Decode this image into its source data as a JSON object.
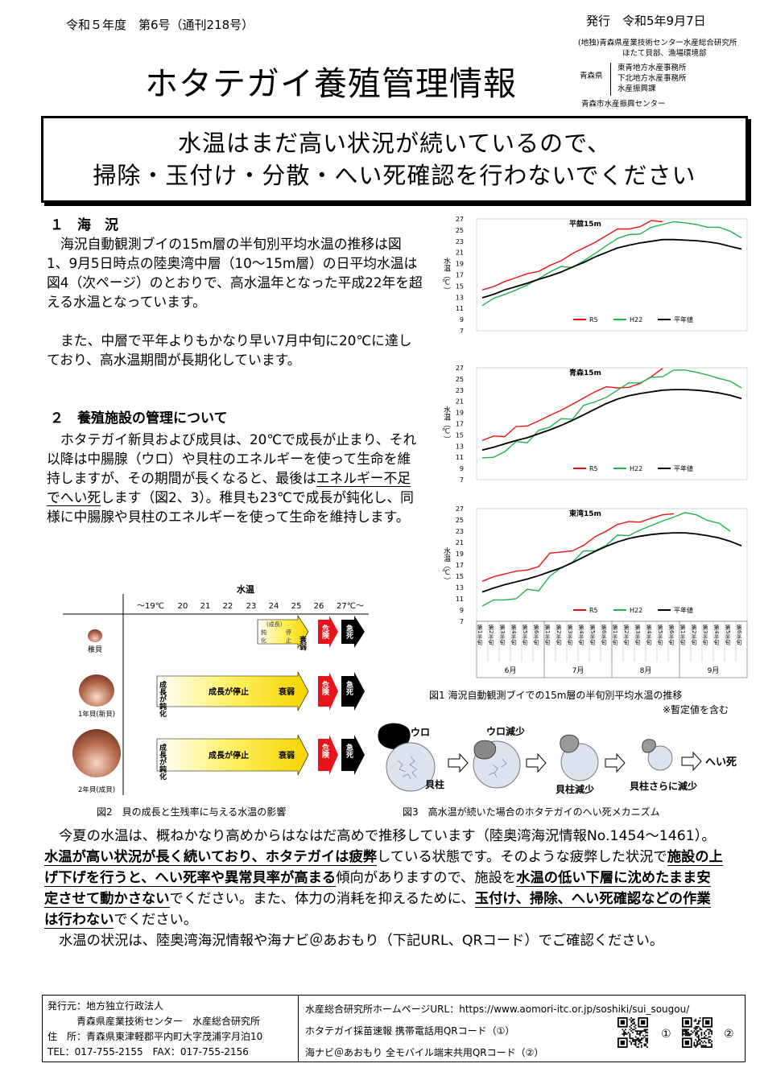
{
  "header": {
    "issue": "令和５年度　第6号（通刊218号）",
    "date": "発行　令和5年9月7日",
    "issuer_line1": "(地独)青森県産業技術センター水産総合研究所",
    "issuer_line2": "ほたて貝部、漁場環境部",
    "prefecture": "青森県",
    "offices": [
      "東青地方水産事務所",
      "下北地方水産事務所",
      "水産振興課"
    ],
    "city": "青森市水産振興センター",
    "title": "ホタテガイ養殖管理情報"
  },
  "headline": {
    "line1": "水温はまだ高い状況が続いているので、",
    "line2": "掃除・玉付け・分散・へい死確認を行わないでください"
  },
  "section1": {
    "heading": "１　海　況",
    "p1": "海況自動観測ブイの15m層の半旬別平均水温の推移は図1、9月5日時点の陸奥湾中層（10〜15m層）の日平均水温は図4（次ページ）のとおりで、高水温年となった平成22年を超える水温となっています。",
    "p2": "また、中層で平年よりもかなり早い7月中旬に20℃に達しており、高水温期間が長期化しています。"
  },
  "section2": {
    "heading": "２　養殖施設の管理について",
    "p1a": "ホタテガイ新貝および成貝は、20℃で成長が止まり、それ以降は中腸腺（ウロ）や貝柱のエネルギーを使って生命を維持しますが、その期間が長くなると、最後は",
    "p1u": "エネルギー不足でへい死",
    "p1b": "します（図2、3）。稚貝も23℃で成長が鈍化し、同様に中腸腺や貝柱のエネルギーを使って生命を維持します。"
  },
  "figure1": {
    "caption": "図1 海況自動観測ブイでの15m層の半旬別平均水温の推移",
    "note": "※暫定値を含む",
    "ylabel": "水温（℃）",
    "ticks": [
      "27",
      "25",
      "23",
      "21",
      "19",
      "17",
      "15",
      "13",
      "11",
      "9",
      "7"
    ],
    "legend": [
      "R5",
      "H22",
      "平年値"
    ],
    "x_ticks": [
      "第1半旬",
      "第2半旬",
      "第3半旬",
      "第4半旬",
      "第5半旬",
      "第6半旬",
      "第1半旬",
      "第2半旬",
      "第3半旬",
      "第4半旬",
      "第5半旬",
      "第6半旬",
      "第1半旬",
      "第2半旬",
      "第3半旬",
      "第4半旬",
      "第5半旬",
      "第6半旬",
      "第1半旬",
      "第2半旬",
      "第3半旬",
      "第4半旬",
      "第5半旬",
      "第6半旬"
    ],
    "months": [
      "6月",
      "7月",
      "8月",
      "9月"
    ],
    "colors": {
      "R5": "#ee1111",
      "H22": "#1fb34a",
      "normal": "#000000"
    }
  },
  "chart_data": [
    {
      "type": "line",
      "title": "平舘15m",
      "ylim": [
        7,
        27
      ],
      "ylabel": "水温（℃）",
      "series": [
        {
          "name": "R5",
          "values": [
            14.3,
            14.9,
            15.8,
            16.5,
            17.2,
            17.6,
            18.7,
            19.5,
            20.8,
            21.8,
            22.8,
            24.0,
            25.2,
            25.2,
            25.6,
            26.7,
            26.5
          ]
        },
        {
          "name": "H22",
          "values": [
            11.5,
            12.8,
            13.5,
            14.3,
            15.2,
            16.3,
            17.5,
            18.5,
            18.3,
            19.5,
            20.8,
            22.2,
            23.5,
            24.2,
            24.3,
            25.5,
            26.0,
            26.5,
            26.3,
            26.0,
            25.5,
            25.5,
            24.8,
            23.6
          ]
        },
        {
          "name": "平年値",
          "values": [
            12.9,
            13.5,
            14.3,
            14.9,
            15.5,
            16.2,
            16.8,
            17.5,
            18.4,
            19.2,
            20.2,
            21.0,
            21.8,
            22.3,
            22.7,
            23.0,
            23.3,
            23.3,
            23.2,
            23.1,
            22.9,
            22.6,
            22.1,
            21.6
          ]
        }
      ]
    },
    {
      "type": "line",
      "title": "青森15m",
      "ylim": [
        7,
        27
      ],
      "ylabel": "水温（℃）",
      "series": [
        {
          "name": "R5",
          "values": [
            14.0,
            14.8,
            14.7,
            16.5,
            16.6,
            17.5,
            18.5,
            19.4,
            20.5,
            21.6,
            22.7,
            23.6,
            23.4,
            23.5,
            24.2,
            25.4,
            26.9
          ]
        },
        {
          "name": "H22",
          "values": [
            10.9,
            11.0,
            12.0,
            13.8,
            13.6,
            15.8,
            16.4,
            17.9,
            17.8,
            20.3,
            20.9,
            21.7,
            23.0,
            24.3,
            24.3,
            25.3,
            25.4,
            26.6,
            26.6,
            26.2,
            25.7,
            25.1,
            24.6,
            23.4
          ]
        },
        {
          "name": "平年値",
          "values": [
            12.3,
            12.8,
            13.4,
            14.0,
            14.5,
            15.2,
            15.9,
            16.7,
            17.6,
            18.6,
            19.6,
            20.6,
            21.4,
            22.0,
            22.4,
            22.7,
            23.0,
            23.1,
            23.1,
            23.0,
            22.8,
            22.5,
            22.1,
            21.5
          ]
        }
      ]
    },
    {
      "type": "line",
      "title": "東湾15m",
      "ylim": [
        7,
        27
      ],
      "ylabel": "水温（℃）",
      "series": [
        {
          "name": "R5",
          "values": [
            14.1,
            14.9,
            15.4,
            15.9,
            16.1,
            16.7,
            19.1,
            19.3,
            19.5,
            20.5,
            22.0,
            23.0,
            24.2,
            24.7,
            24.6,
            25.3,
            25.9,
            26.1
          ]
        },
        {
          "name": "H22",
          "values": [
            9.7,
            10.8,
            10.8,
            11.0,
            12.7,
            12.4,
            15.0,
            16.5,
            17.5,
            19.5,
            19.5,
            20.5,
            22.3,
            22.2,
            23.2,
            24.0,
            24.8,
            25.5,
            26.3,
            25.9,
            24.9,
            24.4,
            23.0
          ]
        },
        {
          "name": "平年値",
          "values": [
            12.2,
            12.9,
            13.5,
            14.0,
            14.5,
            15.1,
            15.8,
            16.5,
            17.4,
            18.4,
            19.4,
            20.3,
            21.1,
            21.7,
            22.1,
            22.4,
            22.6,
            22.7,
            22.7,
            22.5,
            22.2,
            21.8,
            21.2,
            20.4
          ]
        }
      ]
    }
  ],
  "figure2": {
    "caption": "図2　貝の成長と生残率に与える水温の影響",
    "axis_title": "水温",
    "temps": [
      "〜19℃",
      "20",
      "21",
      "22",
      "23",
      "24",
      "25",
      "26",
      "27℃〜"
    ],
    "rows": [
      {
        "label": "稚貝",
        "small": [
          "(成長)",
          "鈍",
          "化",
          "停",
          "止"
        ],
        "weak": "衰弱",
        "danger": "危険",
        "death": "急死"
      },
      {
        "label": "1年貝(新貝)",
        "slow": "成長が鈍化",
        "stop": "成長が停止",
        "weak": "衰弱",
        "danger": "危険",
        "death": "急死"
      },
      {
        "label": "2年貝(成貝)",
        "slow": "成長が鈍化",
        "stop": "成長が停止",
        "weak": "衰弱",
        "danger": "危険",
        "death": "急死"
      }
    ]
  },
  "figure3": {
    "caption": "図3　高水温が続いた場合のホタテガイのへい死メカニズム",
    "labels": [
      "ウロ",
      "ウロ減少",
      "貝柱",
      "貝柱減少",
      "貝柱さらに減少",
      "へい死"
    ]
  },
  "body": {
    "s1": "今夏の水温は、概ねかなり高めからはなはだ高めで推移しています（陸奥湾海況情報No.1454〜1461）。",
    "u1": "水温が高い状況が長く続いており、ホタテガイは疲弊",
    "s2": "している状態です。そのような疲弊した状況で",
    "u2": "施設の上げ下げを行うと、へい死率や異常貝率が高まる",
    "s3": "傾向がありますので、施設を",
    "u3": "水温の低い下層に沈めたまま安定させて動かさない",
    "s4": "でください。また、体力の消耗を抑えるために、",
    "u4": "玉付け、掃除、へい死確認などの作業は行わない",
    "s5": "でください。",
    "p2": "水温の状況は、陸奥湾海況情報や海ナビ＠あおもり（下記URL、QRコード）でご確認ください。"
  },
  "footer": {
    "publisher_label": "発行元：地方独立行政法人",
    "publisher_name": "青森県産業技術センター　水産総合研究所",
    "address": "住　所：青森県東津軽郡平内町大字茂浦字月泊10",
    "phone": "TEL：017-755-2155　FAX：017-755-2156",
    "url": "水産総合研究所ホームページURL：https://www.aomori-itc.or.jp/soshiki/sui_sougou/",
    "qr1": "ホタテガイ採苗速報 携帯電話用QRコード（①）",
    "qr2": "海ナビ＠あおもり 全モバイル端末共用QRコード（②）",
    "qr1_mark": "①",
    "qr2_mark": "②"
  }
}
